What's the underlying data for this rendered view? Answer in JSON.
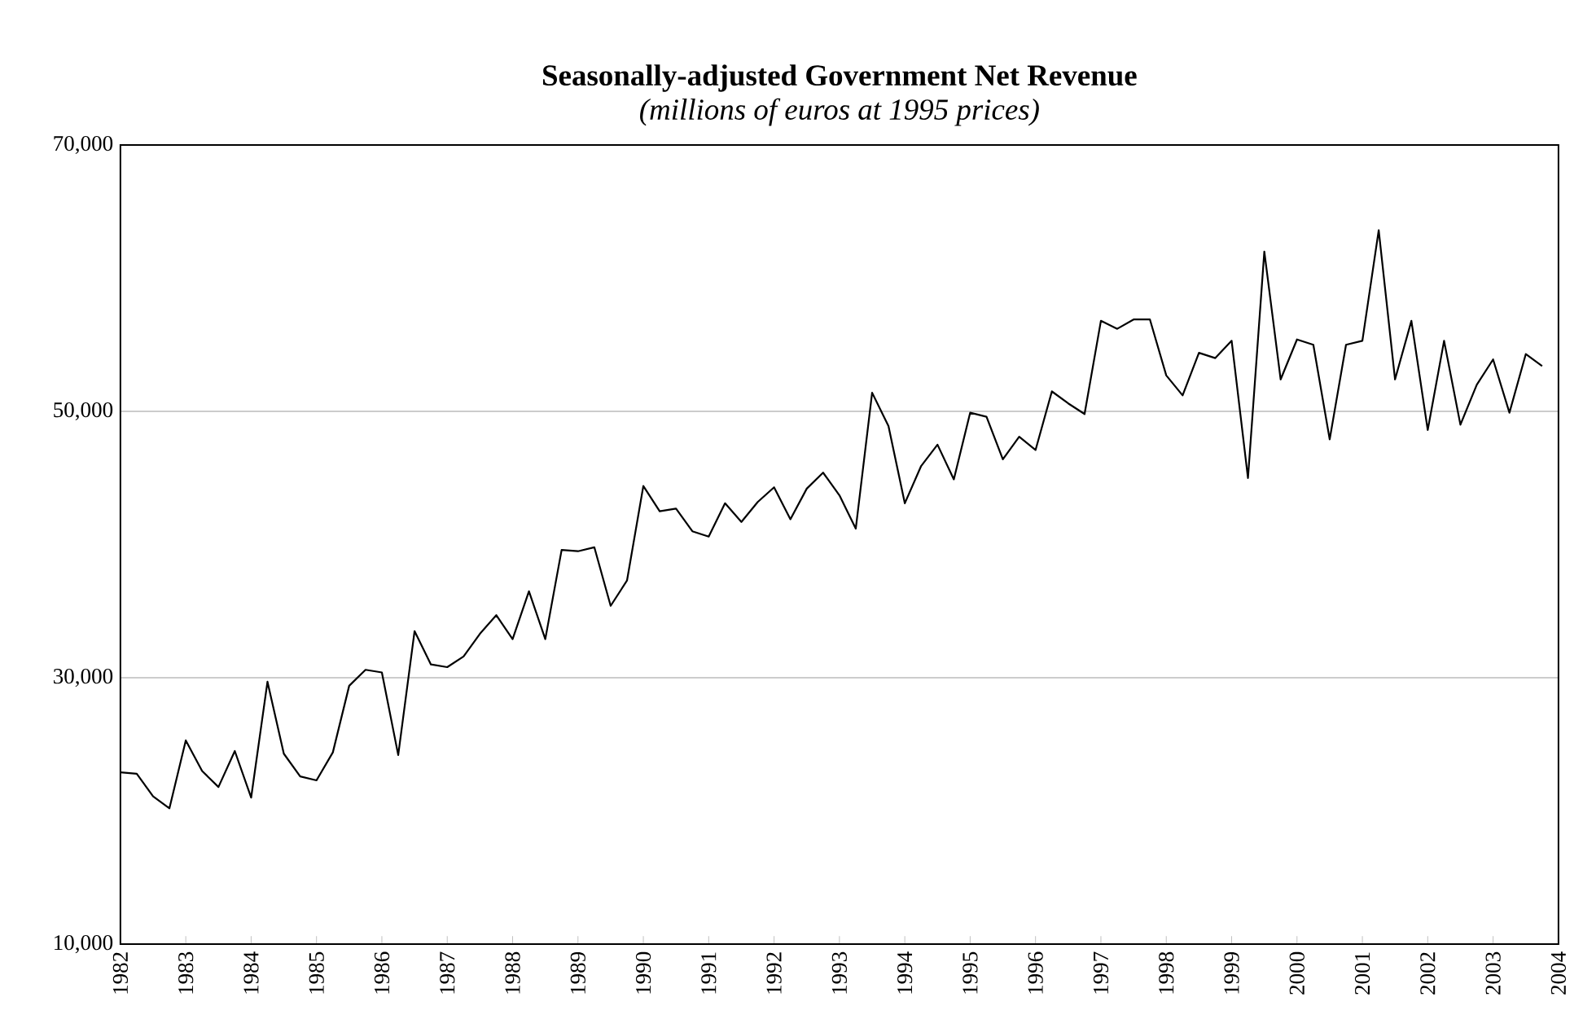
{
  "chart_data": {
    "type": "line",
    "title": "Seasonally-adjusted Government Net Revenue",
    "subtitle": "(millions of euros at 1995 prices)",
    "x": [
      1982,
      1982.25,
      1982.5,
      1982.75,
      1983,
      1983.25,
      1983.5,
      1983.75,
      1984,
      1984.25,
      1984.5,
      1984.75,
      1985,
      1985.25,
      1985.5,
      1985.75,
      1986,
      1986.25,
      1986.5,
      1986.75,
      1987,
      1987.25,
      1987.5,
      1987.75,
      1988,
      1988.25,
      1988.5,
      1988.75,
      1989,
      1989.25,
      1989.5,
      1989.75,
      1990,
      1990.25,
      1990.5,
      1990.75,
      1991,
      1991.25,
      1991.5,
      1991.75,
      1992,
      1992.25,
      1992.5,
      1992.75,
      1993,
      1993.25,
      1993.5,
      1993.75,
      1994,
      1994.25,
      1994.5,
      1994.75,
      1995,
      1995.25,
      1995.5,
      1995.75,
      1996,
      1996.25,
      1996.5,
      1996.75,
      1997,
      1997.25,
      1997.5,
      1997.75,
      1998,
      1998.25,
      1998.5,
      1998.75,
      1999,
      1999.25,
      1999.5,
      1999.75,
      2000,
      2000.25,
      2000.5,
      2000.75,
      2001,
      2001.25,
      2001.5,
      2001.75,
      2002,
      2002.25,
      2002.5,
      2002.75,
      2003,
      2003.25,
      2003.5,
      2003.75
    ],
    "values": [
      22900,
      22800,
      21100,
      20200,
      25300,
      23000,
      21800,
      24500,
      21000,
      29700,
      24300,
      22600,
      22300,
      24400,
      29400,
      30600,
      30400,
      24200,
      33500,
      31000,
      30800,
      31600,
      33300,
      34700,
      32900,
      36500,
      32900,
      39600,
      39500,
      39800,
      35400,
      37300,
      44400,
      42500,
      42700,
      41000,
      40600,
      43100,
      41700,
      43200,
      44300,
      41900,
      44200,
      45400,
      43700,
      41200,
      51400,
      48900,
      43100,
      45900,
      47500,
      44900,
      49900,
      49600,
      46400,
      48100,
      47100,
      51500,
      50600,
      49800,
      56800,
      56200,
      56900,
      56900,
      52700,
      51200,
      54400,
      54000,
      55300,
      45000,
      62000,
      52400,
      55400,
      55000,
      47900,
      55000,
      55300,
      63600,
      52400,
      56800,
      48600,
      55300,
      49000,
      52000,
      53900,
      49900,
      54300,
      53400
    ],
    "color": "#000000",
    "line_style": "solid",
    "grid": "y",
    "xlim": [
      1982,
      2004
    ],
    "xticks": [
      1982,
      1983,
      1984,
      1985,
      1986,
      1987,
      1988,
      1989,
      1990,
      1991,
      1992,
      1993,
      1994,
      1995,
      1996,
      1997,
      1998,
      1999,
      2000,
      2001,
      2002,
      2003,
      2004
    ],
    "ylim": [
      10000,
      70000
    ],
    "yticks": [
      {
        "value": 10000,
        "label": "10,000"
      },
      {
        "value": 30000,
        "label": "30,000"
      },
      {
        "value": 50000,
        "label": "50,000"
      },
      {
        "value": 70000,
        "label": "70,000"
      }
    ]
  }
}
